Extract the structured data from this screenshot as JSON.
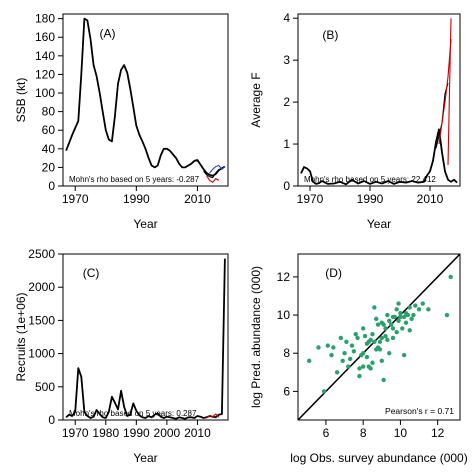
{
  "chart_data": [
    {
      "panel": "(A)",
      "type": "line",
      "xlabel": "Year",
      "ylabel": "SSB (kt)",
      "xlim": [
        1966,
        2020
      ],
      "ylim": [
        0,
        185
      ],
      "xticks": [
        1970,
        1990,
        2010
      ],
      "yticks": [
        0,
        20,
        40,
        60,
        80,
        100,
        120,
        140,
        160,
        180
      ],
      "annotation": "Mohn's rho based on 5 years: -0.287",
      "series": [
        {
          "color": "#000000",
          "x": [
            1967,
            1969,
            1971,
            1972,
            1973,
            1974,
            1975,
            1976,
            1977,
            1978,
            1979,
            1980,
            1981,
            1982,
            1983,
            1984,
            1985,
            1986,
            1987,
            1988,
            1989,
            1990,
            1991,
            1992,
            1993,
            1994,
            1995,
            1996,
            1997,
            1998,
            1999,
            2000,
            2001,
            2002,
            2003,
            2004,
            2005,
            2006,
            2007,
            2008,
            2009,
            2010,
            2011,
            2012,
            2013,
            2014,
            2015,
            2016,
            2017,
            2018,
            2019
          ],
          "y": [
            38,
            55,
            70,
            120,
            180,
            178,
            158,
            130,
            118,
            100,
            80,
            60,
            50,
            48,
            75,
            110,
            125,
            130,
            122,
            105,
            85,
            65,
            55,
            48,
            40,
            30,
            22,
            20,
            22,
            33,
            40,
            40,
            38,
            34,
            30,
            24,
            20,
            20,
            22,
            24,
            27,
            28,
            23,
            18,
            14,
            12,
            11,
            13,
            17,
            19,
            21
          ]
        },
        {
          "color": "#000000",
          "x": [
            2012,
            2013,
            2014,
            2015,
            2016,
            2017
          ],
          "y": [
            16,
            12,
            10,
            9,
            14,
            18
          ]
        },
        {
          "color": "#cc0000",
          "x": [
            2013,
            2014,
            2015,
            2016,
            2017
          ],
          "y": [
            11,
            6,
            4,
            8,
            6
          ]
        },
        {
          "color": "#2244cc",
          "x": [
            2014,
            2015,
            2016,
            2017,
            2018,
            2019
          ],
          "y": [
            14,
            18,
            21,
            22,
            18,
            21
          ]
        }
      ]
    },
    {
      "panel": "(B)",
      "type": "line",
      "xlabel": "Year",
      "ylabel": "Average F",
      "xlim": [
        1966,
        2020
      ],
      "ylim": [
        0,
        4.1
      ],
      "xticks": [
        1970,
        1990,
        2010
      ],
      "yticks": [
        0,
        1,
        2,
        3,
        4
      ],
      "annotation": "Mohn's rho based on 5 years: 22.412",
      "series": [
        {
          "color": "#000000",
          "x": [
            1967,
            1968,
            1969,
            1970,
            1971,
            1972,
            1973,
            1974,
            1975,
            1976,
            1978,
            1980,
            1982,
            1984,
            1986,
            1988,
            1990,
            1992,
            1994,
            1996,
            1998,
            2000,
            2002,
            2004,
            2006,
            2008,
            2009,
            2010,
            2011,
            2012,
            2013,
            2014,
            2015,
            2016,
            2017,
            2018,
            2019
          ],
          "y": [
            0.3,
            0.45,
            0.42,
            0.35,
            0.1,
            0.05,
            0.07,
            0.12,
            0.08,
            0.05,
            0.06,
            0.1,
            0.04,
            0.15,
            0.06,
            0.12,
            0.05,
            0.1,
            0.06,
            0.12,
            0.05,
            0.1,
            0.08,
            0.12,
            0.08,
            0.1,
            0.25,
            0.35,
            0.6,
            1.05,
            1.35,
            0.8,
            0.35,
            0.15,
            0.1,
            0.15,
            0.08
          ]
        },
        {
          "color": "#000000",
          "x": [
            2012,
            2013,
            2014,
            2015,
            2016
          ],
          "y": [
            0.9,
            1.2,
            1.5,
            2.2,
            2.45
          ]
        },
        {
          "color": "#cc0000",
          "x": [
            2013,
            2014,
            2015,
            2016,
            2017
          ],
          "y": [
            1.0,
            1.5,
            2.0,
            2.6,
            3.5
          ]
        },
        {
          "color": "#cc0000",
          "x": [
            2016,
            2017
          ],
          "y": [
            0.5,
            4.0
          ]
        }
      ]
    },
    {
      "panel": "(C)",
      "type": "line",
      "xlabel": "Year",
      "ylabel": "Recruits (1e+06)",
      "xlim": [
        1966,
        2020
      ],
      "ylim": [
        0,
        2500
      ],
      "xticks": [
        1970,
        1980,
        1990,
        2000,
        2010
      ],
      "yticks": [
        0,
        500,
        1000,
        1500,
        2000,
        2500
      ],
      "annotation": "Mohn's rho based on 5 years: 0.287",
      "series": [
        {
          "color": "#000000",
          "x": [
            1967,
            1968,
            1969,
            1970,
            1971,
            1972,
            1973,
            1974,
            1975,
            1976,
            1977,
            1978,
            1979,
            1980,
            1981,
            1982,
            1983,
            1984,
            1985,
            1986,
            1987,
            1988,
            1989,
            1990,
            1991,
            1992,
            1993,
            1994,
            1995,
            1996,
            1997,
            1998,
            1999,
            2000,
            2001,
            2002,
            2003,
            2004,
            2005,
            2006,
            2007,
            2008,
            2009,
            2010,
            2011,
            2012,
            2013,
            2014,
            2015,
            2016,
            2017,
            2018,
            2019
          ],
          "y": [
            40,
            80,
            60,
            120,
            780,
            650,
            120,
            60,
            30,
            50,
            150,
            90,
            40,
            30,
            120,
            350,
            260,
            160,
            440,
            200,
            60,
            80,
            250,
            140,
            70,
            40,
            30,
            60,
            40,
            80,
            100,
            50,
            30,
            50,
            40,
            30,
            20,
            40,
            30,
            20,
            40,
            40,
            30,
            60,
            50,
            30,
            40,
            60,
            50,
            40,
            80,
            90,
            2430
          ]
        },
        {
          "color": "#cc0000",
          "x": [
            2013,
            2014,
            2015,
            2016,
            2017
          ],
          "y": [
            30,
            70,
            50,
            90,
            40
          ]
        }
      ]
    },
    {
      "panel": "(D)",
      "type": "scatter",
      "xlabel": "log Obs. survey abundance (000)",
      "ylabel": "log Pred. abundance (000)",
      "xlim": [
        4.5,
        13.2
      ],
      "ylim": [
        4.5,
        13.2
      ],
      "xticks": [
        6,
        8,
        10,
        12
      ],
      "yticks": [
        6,
        8,
        10,
        12
      ],
      "annotation": "Pearson's r = 0.71",
      "line": {
        "x": [
          4.5,
          13.2
        ],
        "y": [
          4.5,
          13.2
        ],
        "color": "#000000"
      },
      "point_color": "#2ca06e",
      "points": [
        [
          5.9,
          6.0
        ],
        [
          5.1,
          7.6
        ],
        [
          5.6,
          8.3
        ],
        [
          6.1,
          8.4
        ],
        [
          6.4,
          8.3
        ],
        [
          6.8,
          8.8
        ],
        [
          7.0,
          8.0
        ],
        [
          6.6,
          7.0
        ],
        [
          7.2,
          7.3
        ],
        [
          7.4,
          8.4
        ],
        [
          7.6,
          9.0
        ],
        [
          7.7,
          8.8
        ],
        [
          7.8,
          6.8
        ],
        [
          7.8,
          7.2
        ],
        [
          8.0,
          8.0
        ],
        [
          8.0,
          7.3
        ],
        [
          8.2,
          7.8
        ],
        [
          8.2,
          8.5
        ],
        [
          8.3,
          7.3
        ],
        [
          8.4,
          7.2
        ],
        [
          8.4,
          8.7
        ],
        [
          8.5,
          9.0
        ],
        [
          8.6,
          8.6
        ],
        [
          8.6,
          10.4
        ],
        [
          8.7,
          8.2
        ],
        [
          8.8,
          8.3
        ],
        [
          8.8,
          9.5
        ],
        [
          8.9,
          8.6
        ],
        [
          9.0,
          7.6
        ],
        [
          9.0,
          8.8
        ],
        [
          9.1,
          9.5
        ],
        [
          9.2,
          8.9
        ],
        [
          9.2,
          9.3
        ],
        [
          9.3,
          8.7
        ],
        [
          9.4,
          9.7
        ],
        [
          9.4,
          8.0
        ],
        [
          9.5,
          9.5
        ],
        [
          9.6,
          9.9
        ],
        [
          9.6,
          9.3
        ],
        [
          9.7,
          9.9
        ],
        [
          9.8,
          9.1
        ],
        [
          9.8,
          10.3
        ],
        [
          9.9,
          9.7
        ],
        [
          10.0,
          9.9
        ],
        [
          10.0,
          10.1
        ],
        [
          10.1,
          9.3
        ],
        [
          10.2,
          9.9
        ],
        [
          10.3,
          10.1
        ],
        [
          10.3,
          9.6
        ],
        [
          10.4,
          10.0
        ],
        [
          10.5,
          10.4
        ],
        [
          10.6,
          9.8
        ],
        [
          10.7,
          10.0
        ],
        [
          10.8,
          10.5
        ],
        [
          11.0,
          10.3
        ],
        [
          11.2,
          10.6
        ],
        [
          11.5,
          10.3
        ],
        [
          12.7,
          12.0
        ],
        [
          12.5,
          10.0
        ],
        [
          10.2,
          7.9
        ],
        [
          9.1,
          6.6
        ],
        [
          8.5,
          7.5
        ],
        [
          7.9,
          7.9
        ],
        [
          7.3,
          7.7
        ],
        [
          6.9,
          7.6
        ],
        [
          6.3,
          7.9
        ],
        [
          8.1,
          8.9
        ],
        [
          8.7,
          9.8
        ],
        [
          9.3,
          10.0
        ],
        [
          9.9,
          10.6
        ],
        [
          7.5,
          8.1
        ],
        [
          8.3,
          8.6
        ],
        [
          8.9,
          8.2
        ],
        [
          9.6,
          8.8
        ],
        [
          10.5,
          9.2
        ],
        [
          8.0,
          9.3
        ],
        [
          9.0,
          9.6
        ],
        [
          7.1,
          8.6
        ]
      ]
    }
  ]
}
